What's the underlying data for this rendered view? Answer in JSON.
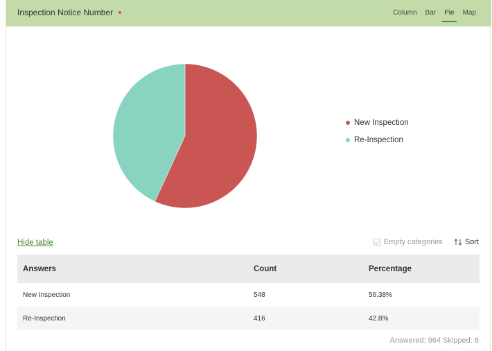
{
  "header": {
    "title": "Inspection Notice Number",
    "tabs": [
      "Column",
      "Bar",
      "Pie",
      "Map"
    ],
    "active_tab": "Pie"
  },
  "chart_data": {
    "type": "pie",
    "categories": [
      "New Inspection",
      "Re-Inspection"
    ],
    "values": [
      548,
      416
    ],
    "colors": [
      "#c95652",
      "#88d4c0"
    ]
  },
  "controls": {
    "hide_table": "Hide table",
    "empty_categories": "Empty categories",
    "sort": "Sort"
  },
  "table": {
    "headers": [
      "Answers",
      "Count",
      "Percentage"
    ],
    "rows": [
      [
        "New Inspection",
        "548",
        "56.38%"
      ],
      [
        "Re-Inspection",
        "416",
        "42.8%"
      ]
    ]
  },
  "footer": {
    "summary": "Answered: 964  Skipped: 8"
  }
}
